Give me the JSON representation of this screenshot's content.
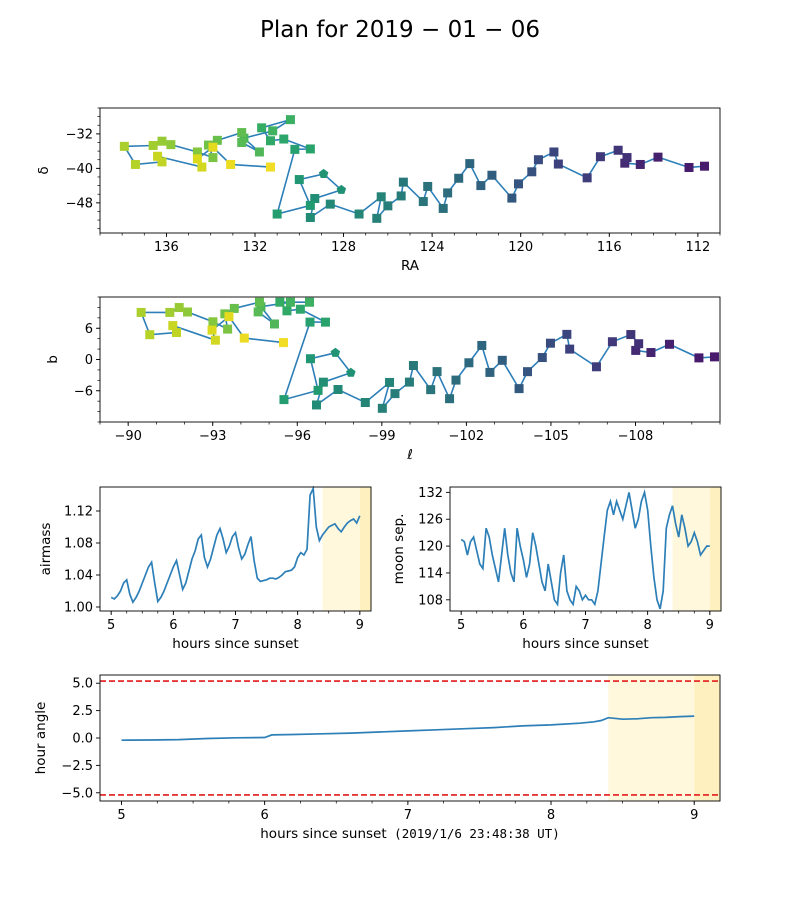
{
  "title": "Plan for 2019 − 01 − 06",
  "colors": {
    "line": "#2d7fb8",
    "axis": "#000000",
    "twilight_light": "#fff8dc",
    "twilight_dark": "#fff1bf",
    "limit": "#e31a1c"
  },
  "chart_data": [
    {
      "id": "radec",
      "type": "scatter",
      "xlabel": "RA",
      "ylabel": "δ",
      "xlim": [
        139,
        111
      ],
      "ylim": [
        -55,
        -26
      ],
      "xticks": [
        136,
        132,
        128,
        124,
        120,
        116,
        112
      ],
      "xtick_labels": [
        "136",
        "132",
        "128",
        "124",
        "120",
        "116",
        "112"
      ],
      "yticks": [
        -48,
        -40,
        -32
      ],
      "ytick_labels": [
        "−48",
        "−40",
        "−32"
      ],
      "marker_types": [
        "square",
        "pentagon"
      ],
      "grid": false,
      "points": [
        [
          111.7,
          -39.5
        ],
        [
          112.4,
          -39.8
        ],
        [
          113.8,
          -37.4
        ],
        [
          114.6,
          -39.1
        ],
        [
          115.3,
          -38.8
        ],
        [
          115.2,
          -37.5
        ],
        [
          115.6,
          -35.8
        ],
        [
          116.4,
          -37.3
        ],
        [
          117.0,
          -42.2
        ],
        [
          118.3,
          -39.0
        ],
        [
          118.5,
          -36.2
        ],
        [
          119.2,
          -38.0
        ],
        [
          119.5,
          -40.8
        ],
        [
          120.1,
          -43.6
        ],
        [
          120.4,
          -46.9
        ],
        [
          121.3,
          -41.6
        ],
        [
          121.8,
          -44.0
        ],
        [
          122.3,
          -38.9
        ],
        [
          122.8,
          -42.3
        ],
        [
          123.3,
          -45.7
        ],
        [
          123.5,
          -49.3
        ],
        [
          124.2,
          -44.2
        ],
        [
          124.4,
          -47.7
        ],
        [
          125.3,
          -43.2
        ],
        [
          125.4,
          -46.4
        ],
        [
          126.0,
          -48.7
        ],
        [
          126.5,
          -51.6
        ],
        [
          126.3,
          -46.6
        ],
        [
          127.3,
          -50.6
        ],
        [
          128.6,
          -48.3
        ],
        [
          129.5,
          -51.4
        ],
        [
          129.3,
          -47.0
        ],
        [
          128.1,
          -45.0
        ],
        [
          128.9,
          -41.3
        ],
        [
          130.0,
          -42.6
        ],
        [
          129.5,
          -48.6
        ],
        [
          131.0,
          -50.6
        ],
        [
          130.2,
          -35.6
        ],
        [
          129.5,
          -35.5
        ],
        [
          130.7,
          -33.2
        ],
        [
          131.3,
          -33.6
        ],
        [
          131.7,
          -30.6
        ],
        [
          130.4,
          -28.7
        ],
        [
          131.2,
          -31.3
        ],
        [
          132.5,
          -33.0
        ],
        [
          131.8,
          -36.2
        ],
        [
          132.6,
          -34.0
        ],
        [
          132.6,
          -31.7
        ],
        [
          133.7,
          -33.5
        ],
        [
          134.1,
          -34.6
        ],
        [
          133.9,
          -37.5
        ],
        [
          134.6,
          -36.2
        ],
        [
          135.8,
          -34.5
        ],
        [
          136.2,
          -33.7
        ],
        [
          136.6,
          -34.7
        ],
        [
          137.9,
          -34.9
        ],
        [
          137.4,
          -39.1
        ],
        [
          136.2,
          -38.5
        ],
        [
          136.4,
          -37.2
        ],
        [
          134.4,
          -39.7
        ],
        [
          134.6,
          -37.8
        ],
        [
          133.9,
          -35.1
        ],
        [
          133.1,
          -39.1
        ],
        [
          131.3,
          -39.7
        ]
      ],
      "point_colors": [
        "#481a6c",
        "#471b6c",
        "#46216e",
        "#452570",
        "#442a73",
        "#423176",
        "#403576",
        "#3f3879",
        "#3e3d7b",
        "#3c407d",
        "#3a457e",
        "#394b7f",
        "#37517f",
        "#35547f",
        "#33587e",
        "#315d7f",
        "#30617e",
        "#2e657e",
        "#2d697e",
        "#2c6c7d",
        "#2c6f7c",
        "#2b727b",
        "#2a757b",
        "#28787a",
        "#277b79",
        "#267d79",
        "#268078",
        "#258378",
        "#248577",
        "#238876",
        "#228b76",
        "#218e75",
        "#209175",
        "#219473",
        "#219773",
        "#229a71",
        "#249d70",
        "#26a06e",
        "#29a36c",
        "#2ca66a",
        "#30a967",
        "#35ac64",
        "#3baf62",
        "#41b25f",
        "#48b55b",
        "#4fb758",
        "#57ba54",
        "#60bd50",
        "#69bf4c",
        "#72c248",
        "#7bc443",
        "#84c73f",
        "#8ec93a",
        "#97cb35",
        "#a1cd31",
        "#abd02d",
        "#b5d228",
        "#bfd425",
        "#c8d622",
        "#d2d81f",
        "#dbda1d",
        "#e4db1f",
        "#ebdc22",
        "#f1dd26"
      ],
      "pentagon_indices": [
        32,
        33
      ]
    },
    {
      "id": "galactic",
      "type": "scatter",
      "xlabel": "ℓ",
      "ylabel": "b",
      "xlim": [
        -89,
        -111
      ],
      "ylim": [
        -12,
        12
      ],
      "xticks": [
        -90,
        -93,
        -96,
        -99,
        -102,
        -105,
        -108
      ],
      "xtick_labels": [
        "−90",
        "−93",
        "−96",
        "−99",
        "−102",
        "−105",
        "−108"
      ],
      "yticks": [
        -6,
        0,
        6
      ],
      "ytick_labels": [
        "−6",
        "0",
        "6"
      ],
      "marker_types": [
        "square",
        "pentagon"
      ],
      "grid": false
    },
    {
      "id": "airmass",
      "type": "line",
      "xlabel": "hours since sunset",
      "ylabel": "airmass",
      "xlim": [
        4.82,
        9.18
      ],
      "ylim": [
        0.995,
        1.15
      ],
      "xticks": [
        5,
        6,
        7,
        8,
        9
      ],
      "xtick_labels": [
        "5",
        "6",
        "7",
        "8",
        "9"
      ],
      "yticks": [
        1.0,
        1.04,
        1.08,
        1.12
      ],
      "ytick_labels": [
        "1.00",
        "1.04",
        "1.08",
        "1.12"
      ],
      "shading": [
        [
          8.4,
          9.0,
          "light"
        ],
        [
          9.0,
          9.18,
          "dark"
        ]
      ],
      "x": [
        5.0,
        5.05,
        5.1,
        5.15,
        5.2,
        5.25,
        5.3,
        5.35,
        5.4,
        5.45,
        5.5,
        5.55,
        5.6,
        5.65,
        5.7,
        5.75,
        5.8,
        5.85,
        5.9,
        5.95,
        6.0,
        6.05,
        6.1,
        6.15,
        6.2,
        6.25,
        6.3,
        6.35,
        6.4,
        6.45,
        6.5,
        6.55,
        6.6,
        6.65,
        6.7,
        6.75,
        6.8,
        6.85,
        6.9,
        6.95,
        7.0,
        7.05,
        7.1,
        7.15,
        7.2,
        7.25,
        7.3,
        7.35,
        7.4,
        7.45,
        7.5,
        7.55,
        7.6,
        7.65,
        7.7,
        7.75,
        7.8,
        7.85,
        7.9,
        7.95,
        8.0,
        8.05,
        8.1,
        8.15,
        8.2,
        8.25,
        8.3,
        8.35,
        8.4,
        8.45,
        8.5,
        8.55,
        8.6,
        8.65,
        8.7,
        8.75,
        8.8,
        8.85,
        8.9,
        8.95,
        9.0
      ],
      "y": [
        1.012,
        1.01,
        1.014,
        1.02,
        1.03,
        1.034,
        1.016,
        1.006,
        1.012,
        1.02,
        1.03,
        1.04,
        1.05,
        1.056,
        1.03,
        1.007,
        1.012,
        1.02,
        1.03,
        1.04,
        1.05,
        1.058,
        1.04,
        1.022,
        1.03,
        1.045,
        1.06,
        1.07,
        1.085,
        1.09,
        1.062,
        1.05,
        1.06,
        1.075,
        1.09,
        1.098,
        1.085,
        1.068,
        1.076,
        1.088,
        1.093,
        1.074,
        1.06,
        1.066,
        1.078,
        1.088,
        1.058,
        1.036,
        1.032,
        1.033,
        1.034,
        1.036,
        1.036,
        1.035,
        1.037,
        1.04,
        1.044,
        1.045,
        1.046,
        1.05,
        1.062,
        1.068,
        1.065,
        1.072,
        1.14,
        1.148,
        1.1,
        1.083,
        1.09,
        1.095,
        1.1,
        1.102,
        1.104,
        1.098,
        1.094,
        1.1,
        1.105,
        1.108,
        1.11,
        1.105,
        1.114
      ]
    },
    {
      "id": "moonsep",
      "type": "line",
      "xlabel": "hours since sunset",
      "ylabel": "moon sep.",
      "xlim": [
        4.82,
        9.18
      ],
      "ylim": [
        105.5,
        133.2
      ],
      "xticks": [
        5,
        6,
        7,
        8,
        9
      ],
      "xtick_labels": [
        "5",
        "6",
        "7",
        "8",
        "9"
      ],
      "yticks": [
        108,
        114,
        120,
        126,
        132
      ],
      "ytick_labels": [
        "108",
        "114",
        "120",
        "126",
        "132"
      ],
      "shading": [
        [
          8.4,
          9.0,
          "light"
        ],
        [
          9.0,
          9.18,
          "dark"
        ]
      ],
      "x": [
        5.0,
        5.05,
        5.1,
        5.15,
        5.2,
        5.25,
        5.3,
        5.35,
        5.4,
        5.45,
        5.5,
        5.55,
        5.6,
        5.65,
        5.7,
        5.75,
        5.8,
        5.85,
        5.9,
        5.95,
        6.0,
        6.05,
        6.1,
        6.15,
        6.2,
        6.25,
        6.3,
        6.35,
        6.4,
        6.45,
        6.5,
        6.55,
        6.6,
        6.65,
        6.7,
        6.75,
        6.8,
        6.85,
        6.9,
        6.95,
        7.0,
        7.05,
        7.1,
        7.15,
        7.2,
        7.25,
        7.3,
        7.35,
        7.4,
        7.45,
        7.5,
        7.55,
        7.6,
        7.65,
        7.7,
        7.75,
        7.8,
        7.85,
        7.9,
        7.95,
        8.0,
        8.05,
        8.1,
        8.15,
        8.2,
        8.25,
        8.3,
        8.35,
        8.4,
        8.45,
        8.5,
        8.55,
        8.6,
        8.65,
        8.7,
        8.75,
        8.8,
        8.85,
        8.9,
        8.95,
        9.0
      ],
      "y": [
        121.5,
        121,
        118,
        121,
        122,
        119,
        116,
        115,
        124,
        122,
        118,
        115,
        112,
        118,
        124,
        118,
        114,
        112,
        124,
        120,
        117,
        113,
        116,
        123,
        120,
        116,
        112,
        110,
        116,
        112,
        108,
        107,
        114,
        118,
        110,
        108,
        107,
        111,
        110,
        108,
        109,
        108,
        108,
        107,
        110,
        116,
        122,
        128,
        130,
        127,
        130,
        128,
        126,
        129,
        132,
        128,
        124,
        126,
        130,
        132,
        128,
        120,
        113,
        108,
        106,
        110,
        124,
        127,
        129,
        125,
        122,
        127,
        124,
        120,
        121,
        123,
        121,
        118,
        119,
        120,
        120
      ]
    },
    {
      "id": "hourangle",
      "type": "line",
      "xlabel": "hours since sunset",
      "xlabel_suffix": "(2019/1/6 23:48:38 UT)",
      "ylabel": "hour angle",
      "xlim": [
        4.85,
        9.18
      ],
      "ylim": [
        -5.75,
        5.75
      ],
      "xticks": [
        5,
        6,
        7,
        8,
        9
      ],
      "xtick_labels": [
        "5",
        "6",
        "7",
        "8",
        "9"
      ],
      "yticks": [
        5.0,
        2.5,
        0.0,
        -2.5,
        -5.0
      ],
      "ytick_labels": [
        "5.0",
        "2.5",
        "0.0",
        "−2.5",
        "−5.0"
      ],
      "limits": [
        5.2,
        -5.2
      ],
      "shading": [
        [
          8.4,
          9.0,
          "light"
        ],
        [
          9.0,
          9.18,
          "dark"
        ]
      ],
      "x": [
        5.0,
        5.2,
        5.4,
        5.6,
        5.8,
        6.0,
        6.05,
        6.2,
        6.4,
        6.6,
        6.8,
        7.0,
        7.2,
        7.4,
        7.6,
        7.8,
        8.0,
        8.2,
        8.3,
        8.35,
        8.4,
        8.5,
        8.6,
        8.7,
        8.8,
        8.9,
        9.0
      ],
      "y": [
        -0.2,
        -0.18,
        -0.15,
        -0.05,
        0.02,
        0.05,
        0.28,
        0.32,
        0.38,
        0.45,
        0.55,
        0.65,
        0.75,
        0.85,
        0.95,
        1.1,
        1.2,
        1.35,
        1.48,
        1.6,
        1.85,
        1.72,
        1.75,
        1.85,
        1.88,
        1.95,
        2.0
      ]
    }
  ]
}
